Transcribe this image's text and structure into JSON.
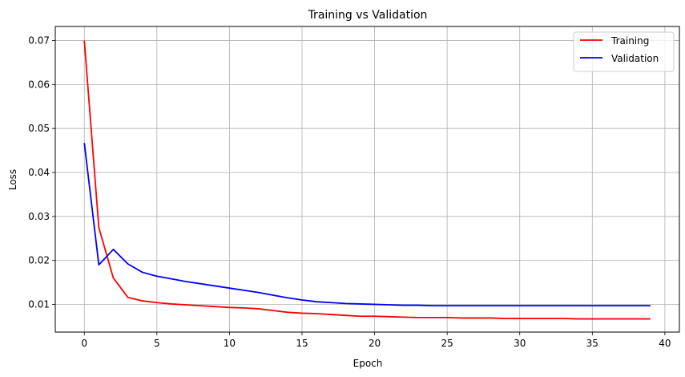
{
  "chart_data": {
    "type": "line",
    "title": "Training vs Validation",
    "xlabel": "Epoch",
    "ylabel": "Loss",
    "xlim": [
      -2,
      41
    ],
    "ylim": [
      0.0037,
      0.0732
    ],
    "xticks": [
      0,
      5,
      10,
      15,
      20,
      25,
      30,
      35,
      40
    ],
    "xtick_labels": [
      "0",
      "5",
      "10",
      "15",
      "20",
      "25",
      "30",
      "35",
      "40"
    ],
    "yticks": [
      0.01,
      0.02,
      0.03,
      0.04,
      0.05,
      0.06,
      0.07
    ],
    "ytick_labels": [
      "0.01",
      "0.02",
      "0.03",
      "0.04",
      "0.05",
      "0.06",
      "0.07"
    ],
    "grid": true,
    "legend": "top-right",
    "series": [
      {
        "name": "Training",
        "color": "#ff0000",
        "x": [
          0,
          1,
          2,
          3,
          4,
          5,
          6,
          7,
          8,
          9,
          10,
          11,
          12,
          13,
          14,
          15,
          16,
          17,
          18,
          19,
          20,
          21,
          22,
          23,
          24,
          25,
          26,
          27,
          28,
          29,
          30,
          31,
          32,
          33,
          34,
          35,
          36,
          37,
          38,
          39
        ],
        "values": [
          0.07,
          0.0275,
          0.016,
          0.0116,
          0.0108,
          0.0104,
          0.0101,
          0.0099,
          0.0097,
          0.0095,
          0.0093,
          0.0092,
          0.009,
          0.0086,
          0.0082,
          0.008,
          0.0079,
          0.0077,
          0.0075,
          0.0073,
          0.0073,
          0.0072,
          0.0071,
          0.007,
          0.007,
          0.007,
          0.0069,
          0.0069,
          0.0069,
          0.0068,
          0.0068,
          0.0068,
          0.0068,
          0.0068,
          0.0067,
          0.0067,
          0.0067,
          0.0067,
          0.0067,
          0.0067
        ]
      },
      {
        "name": "Validation",
        "color": "#0000ff",
        "x": [
          0,
          1,
          2,
          3,
          4,
          5,
          6,
          7,
          8,
          9,
          10,
          11,
          12,
          13,
          14,
          15,
          16,
          17,
          18,
          19,
          20,
          21,
          22,
          23,
          24,
          25,
          26,
          27,
          28,
          29,
          30,
          31,
          32,
          33,
          34,
          35,
          36,
          37,
          38,
          39
        ],
        "values": [
          0.0467,
          0.019,
          0.0225,
          0.0192,
          0.0173,
          0.0164,
          0.0158,
          0.0152,
          0.0147,
          0.0142,
          0.0137,
          0.0132,
          0.0127,
          0.0121,
          0.0115,
          0.011,
          0.0106,
          0.0104,
          0.0102,
          0.0101,
          0.01,
          0.0099,
          0.0098,
          0.0098,
          0.0097,
          0.0097,
          0.0097,
          0.0097,
          0.0097,
          0.0097,
          0.0097,
          0.0097,
          0.0097,
          0.0097,
          0.0097,
          0.0097,
          0.0097,
          0.0097,
          0.0097,
          0.0097
        ]
      }
    ]
  }
}
